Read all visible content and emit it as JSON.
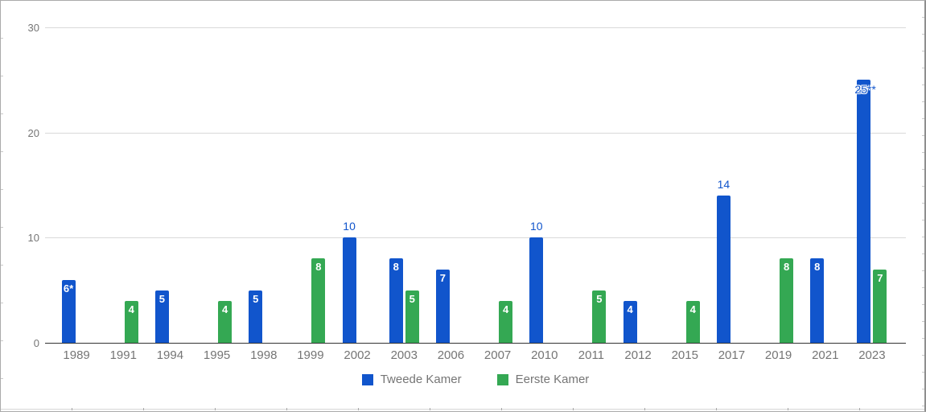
{
  "frame": {
    "background": "#ffffff",
    "border_color": "#ababab"
  },
  "palette": {
    "tweede_kamer_blue": "#1155CC",
    "eerste_kamer_green": "#34A853",
    "grid_color": "#d9d9d9",
    "axis_color": "#333333",
    "tick_label_color": "#757575",
    "legend_label_color": "#757575",
    "inside_label_color": "#ffffff"
  },
  "chart_data": {
    "type": "bar",
    "title": "",
    "xlabel": "",
    "ylabel": "",
    "ylim": [
      0,
      30
    ],
    "yticks": [
      0,
      10,
      20,
      30
    ],
    "grid": true,
    "legend_position": "bottom",
    "categories": [
      "1989",
      "1991",
      "1994",
      "1995",
      "1998",
      "1999",
      "2002",
      "2003",
      "2006",
      "2007",
      "2010",
      "2011",
      "2012",
      "2015",
      "2017",
      "2019",
      "2021",
      "2023"
    ],
    "series": [
      {
        "name": "Tweede Kamer",
        "color": "#1155CC",
        "values": [
          6,
          null,
          5,
          null,
          5,
          null,
          10,
          8,
          7,
          null,
          10,
          null,
          4,
          null,
          14,
          null,
          8,
          25
        ],
        "labels": [
          "6*",
          null,
          "5",
          null,
          "5",
          null,
          "10",
          "8",
          "7",
          null,
          "10",
          null,
          "4",
          null,
          "14",
          null,
          "8",
          "25**"
        ],
        "label_positions": [
          "inside",
          null,
          "inside",
          null,
          "inside",
          null,
          "above",
          "inside",
          "inside",
          null,
          "above",
          null,
          "inside",
          null,
          "above",
          null,
          "inside",
          "overlap"
        ]
      },
      {
        "name": "Eerste Kamer",
        "color": "#34A853",
        "values": [
          null,
          4,
          null,
          4,
          null,
          8,
          null,
          5,
          null,
          4,
          null,
          5,
          null,
          4,
          null,
          8,
          null,
          7
        ],
        "labels": [
          null,
          "4",
          null,
          "4",
          null,
          "8",
          null,
          "5",
          null,
          "4",
          null,
          "5",
          null,
          "4",
          null,
          "8",
          null,
          "7"
        ],
        "label_positions": [
          null,
          "inside",
          null,
          "inside",
          null,
          "inside",
          null,
          "inside",
          null,
          "inside",
          null,
          "inside",
          null,
          "inside",
          null,
          "inside",
          null,
          "inside"
        ]
      }
    ]
  }
}
